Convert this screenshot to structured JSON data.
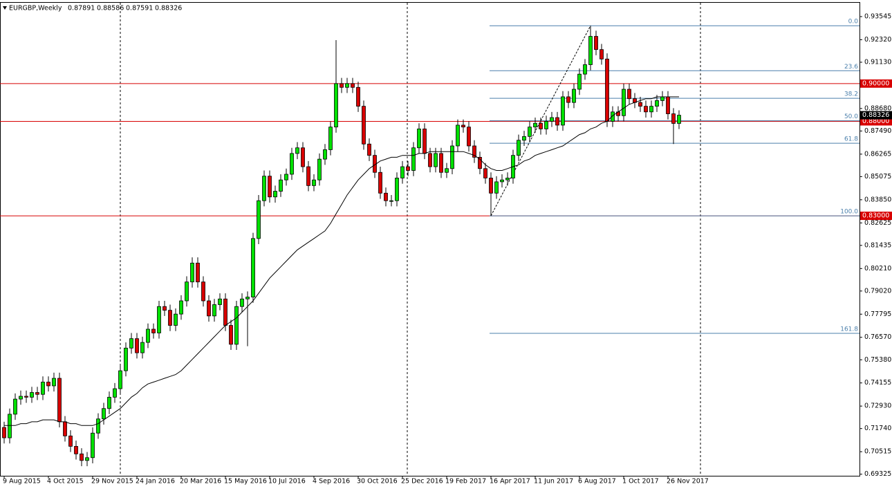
{
  "chart_data": {
    "type": "candlestick",
    "symbol": "EURGBP,Weekly",
    "categories": [
      "9 Aug 2015",
      null,
      null,
      null,
      null,
      null,
      null,
      null,
      "4 Oct 2015",
      null,
      null,
      null,
      null,
      null,
      null,
      null,
      "29 Nov 2015",
      null,
      null,
      null,
      null,
      null,
      null,
      null,
      "24 Jan 2016",
      null,
      null,
      null,
      null,
      null,
      null,
      null,
      "20 Mar 2016",
      null,
      null,
      null,
      null,
      null,
      null,
      null,
      "15 May 2016",
      null,
      null,
      null,
      null,
      null,
      null,
      null,
      "10 Jul 2016",
      null,
      null,
      null,
      null,
      null,
      null,
      null,
      "4 Sep 2016",
      null,
      null,
      null,
      null,
      null,
      null,
      null,
      "30 Oct 2016",
      null,
      null,
      null,
      null,
      null,
      null,
      null,
      "25 Dec 2016",
      null,
      null,
      null,
      null,
      null,
      null,
      null,
      "19 Feb 2017",
      null,
      null,
      null,
      null,
      null,
      null,
      null,
      "16 Apr 2017",
      null,
      null,
      null,
      null,
      null,
      null,
      null,
      "11 Jun 2017",
      null,
      null,
      null,
      null,
      null,
      null,
      null,
      "6 Aug 2017",
      null,
      null,
      null,
      null,
      null,
      null,
      null,
      "1 Oct 2017",
      null,
      null,
      null,
      null,
      null,
      null,
      null,
      "26 Nov 2017",
      null,
      null
    ],
    "open": [
      0.718,
      0.7125,
      0.725,
      0.733,
      0.7345,
      0.734,
      0.7365,
      0.7355,
      0.742,
      0.74,
      0.744,
      0.721,
      0.7135,
      0.708,
      0.704,
      0.7005,
      0.702,
      0.715,
      0.7225,
      0.728,
      0.734,
      0.7385,
      0.748,
      0.76,
      0.765,
      0.7575,
      0.763,
      0.77,
      0.768,
      0.782,
      0.78,
      0.772,
      0.778,
      0.785,
      0.795,
      0.805,
      0.795,
      0.785,
      0.777,
      0.783,
      0.786,
      0.772,
      0.762,
      0.782,
      0.786,
      0.787,
      0.818,
      0.838,
      0.851,
      0.84,
      0.843,
      0.849,
      0.852,
      0.863,
      0.866,
      0.856,
      0.846,
      0.849,
      0.86,
      0.865,
      0.877,
      0.9,
      0.898,
      0.9,
      0.898,
      0.888,
      0.868,
      0.862,
      0.853,
      0.842,
      0.838,
      0.838,
      0.85,
      0.856,
      0.854,
      0.866,
      0.876,
      0.863,
      0.856,
      0.863,
      0.853,
      0.855,
      0.867,
      0.878,
      0.877,
      0.867,
      0.861,
      0.855,
      0.85,
      0.842,
      0.848,
      0.849,
      0.85,
      0.862,
      0.87,
      0.872,
      0.877,
      0.879,
      0.876,
      0.88,
      0.882,
      0.878,
      0.893,
      0.89,
      0.897,
      0.905,
      0.91,
      0.925,
      0.918,
      0.913,
      0.88,
      0.885,
      0.883,
      0.897,
      0.892,
      0.89,
      0.888,
      0.885,
      0.888,
      0.891,
      0.893,
      0.884,
      0.87891
    ],
    "high": [
      0.721,
      0.728,
      0.736,
      0.7375,
      0.7375,
      0.7395,
      0.7395,
      0.745,
      0.745,
      0.747,
      0.747,
      0.724,
      0.7165,
      0.711,
      0.707,
      0.705,
      0.718,
      0.7255,
      0.731,
      0.737,
      0.7415,
      0.751,
      0.763,
      0.768,
      0.768,
      0.766,
      0.773,
      0.773,
      0.785,
      0.785,
      0.783,
      0.781,
      0.788,
      0.798,
      0.808,
      0.808,
      0.798,
      0.788,
      0.786,
      0.789,
      0.789,
      0.775,
      0.785,
      0.789,
      0.79,
      0.821,
      0.841,
      0.854,
      0.854,
      0.846,
      0.852,
      0.855,
      0.866,
      0.869,
      0.869,
      0.859,
      0.852,
      0.863,
      0.868,
      0.88,
      0.923,
      0.903,
      0.903,
      0.903,
      0.901,
      0.891,
      0.871,
      0.865,
      0.856,
      0.845,
      0.841,
      0.853,
      0.859,
      0.859,
      0.869,
      0.879,
      0.879,
      0.866,
      0.866,
      0.866,
      0.858,
      0.87,
      0.881,
      0.881,
      0.88,
      0.87,
      0.864,
      0.858,
      0.853,
      0.851,
      0.852,
      0.853,
      0.865,
      0.873,
      0.875,
      0.88,
      0.882,
      0.882,
      0.883,
      0.885,
      0.885,
      0.896,
      0.896,
      0.9,
      0.908,
      0.913,
      0.9306,
      0.928,
      0.921,
      0.916,
      0.888,
      0.888,
      0.9,
      0.9,
      0.895,
      0.893,
      0.891,
      0.891,
      0.894,
      0.896,
      0.896,
      0.887,
      0.88586
    ],
    "low": [
      0.7095,
      0.7095,
      0.722,
      0.73,
      0.731,
      0.731,
      0.7325,
      0.7325,
      0.737,
      0.737,
      0.718,
      0.7105,
      0.705,
      0.701,
      0.6975,
      0.6975,
      0.699,
      0.712,
      0.7195,
      0.725,
      0.731,
      0.7355,
      0.745,
      0.757,
      0.7545,
      0.7545,
      0.76,
      0.765,
      0.765,
      0.777,
      0.769,
      0.769,
      0.775,
      0.782,
      0.792,
      0.792,
      0.782,
      0.774,
      0.774,
      0.78,
      0.769,
      0.759,
      0.759,
      0.779,
      0.761,
      0.784,
      0.815,
      0.835,
      0.837,
      0.837,
      0.84,
      0.846,
      0.849,
      0.86,
      0.853,
      0.843,
      0.843,
      0.846,
      0.857,
      0.862,
      0.874,
      0.895,
      0.895,
      0.895,
      0.885,
      0.865,
      0.859,
      0.85,
      0.839,
      0.835,
      0.835,
      0.835,
      0.847,
      0.851,
      0.851,
      0.863,
      0.86,
      0.853,
      0.853,
      0.85,
      0.85,
      0.852,
      0.864,
      0.874,
      0.864,
      0.858,
      0.852,
      0.847,
      0.83,
      0.839,
      0.845,
      0.846,
      0.847,
      0.859,
      0.867,
      0.869,
      0.874,
      0.873,
      0.873,
      0.877,
      0.875,
      0.875,
      0.887,
      0.887,
      0.894,
      0.902,
      0.907,
      0.915,
      0.91,
      0.877,
      0.877,
      0.88,
      0.88,
      0.889,
      0.887,
      0.885,
      0.882,
      0.882,
      0.885,
      0.888,
      0.881,
      0.868,
      0.87591
    ],
    "close": [
      0.7125,
      0.725,
      0.733,
      0.7345,
      0.734,
      0.7365,
      0.7355,
      0.742,
      0.74,
      0.744,
      0.721,
      0.7135,
      0.708,
      0.704,
      0.7005,
      0.702,
      0.715,
      0.7225,
      0.728,
      0.734,
      0.7385,
      0.748,
      0.76,
      0.765,
      0.7575,
      0.763,
      0.77,
      0.768,
      0.782,
      0.78,
      0.772,
      0.778,
      0.785,
      0.795,
      0.805,
      0.795,
      0.785,
      0.777,
      0.783,
      0.786,
      0.772,
      0.762,
      0.782,
      0.786,
      0.787,
      0.818,
      0.838,
      0.851,
      0.84,
      0.843,
      0.849,
      0.852,
      0.863,
      0.866,
      0.856,
      0.846,
      0.849,
      0.86,
      0.865,
      0.877,
      0.9,
      0.898,
      0.9,
      0.898,
      0.888,
      0.868,
      0.862,
      0.853,
      0.842,
      0.838,
      0.838,
      0.85,
      0.856,
      0.854,
      0.866,
      0.876,
      0.863,
      0.856,
      0.863,
      0.853,
      0.855,
      0.867,
      0.878,
      0.877,
      0.867,
      0.861,
      0.855,
      0.85,
      0.842,
      0.848,
      0.849,
      0.85,
      0.862,
      0.87,
      0.872,
      0.877,
      0.879,
      0.876,
      0.88,
      0.882,
      0.878,
      0.893,
      0.89,
      0.897,
      0.905,
      0.91,
      0.925,
      0.918,
      0.913,
      0.88,
      0.885,
      0.883,
      0.897,
      0.892,
      0.89,
      0.888,
      0.885,
      0.888,
      0.891,
      0.893,
      0.884,
      0.8789,
      0.88326
    ],
    "up_color": "#00e000",
    "down_color": "#d80000",
    "ylim": [
      0.6924,
      0.9424
    ],
    "yticks": [
      {
        "value": 0.93545,
        "label": "0.93545"
      },
      {
        "value": 0.9232,
        "label": "0.92320"
      },
      {
        "value": 0.9113,
        "label": "0.91130"
      },
      {
        "value": 0.8868,
        "label": "0.88680"
      },
      {
        "value": 0.8749,
        "label": "0.87490"
      },
      {
        "value": 0.86265,
        "label": "0.86265"
      },
      {
        "value": 0.85075,
        "label": "0.85075"
      },
      {
        "value": 0.8385,
        "label": "0.83850"
      },
      {
        "value": 0.82625,
        "label": "0.82625"
      },
      {
        "value": 0.81435,
        "label": "0.81435"
      },
      {
        "value": 0.8021,
        "label": "0.80210"
      },
      {
        "value": 0.7902,
        "label": "0.79020"
      },
      {
        "value": 0.77795,
        "label": "0.77795"
      },
      {
        "value": 0.7657,
        "label": "0.76570"
      },
      {
        "value": 0.7538,
        "label": "0.75380"
      },
      {
        "value": 0.74155,
        "label": "0.74155"
      },
      {
        "value": 0.7293,
        "label": "0.72930"
      },
      {
        "value": 0.7174,
        "label": "0.71740"
      },
      {
        "value": 0.70515,
        "label": "0.70515"
      },
      {
        "value": 0.69325,
        "label": "0.69325"
      }
    ],
    "moving_average": {
      "color": "#000000",
      "values": [
        0.719,
        0.719,
        0.719,
        0.72,
        0.72,
        0.721,
        0.721,
        0.722,
        0.722,
        0.722,
        0.721,
        0.721,
        0.72,
        0.72,
        0.719,
        0.719,
        0.719,
        0.72,
        0.722,
        0.724,
        0.726,
        0.728,
        0.731,
        0.734,
        0.736,
        0.739,
        0.741,
        0.742,
        0.743,
        0.744,
        0.745,
        0.746,
        0.748,
        0.751,
        0.754,
        0.757,
        0.76,
        0.763,
        0.766,
        0.769,
        0.772,
        0.774,
        0.776,
        0.779,
        0.782,
        0.785,
        0.789,
        0.793,
        0.797,
        0.8,
        0.803,
        0.806,
        0.809,
        0.812,
        0.814,
        0.816,
        0.818,
        0.82,
        0.822,
        0.826,
        0.831,
        0.836,
        0.841,
        0.845,
        0.849,
        0.852,
        0.855,
        0.857,
        0.859,
        0.86,
        0.861,
        0.861,
        0.862,
        0.862,
        0.862,
        0.863,
        0.863,
        0.864,
        0.864,
        0.864,
        0.864,
        0.864,
        0.864,
        0.864,
        0.863,
        0.862,
        0.86,
        0.857,
        0.855,
        0.854,
        0.854,
        0.855,
        0.856,
        0.857,
        0.859,
        0.86,
        0.862,
        0.863,
        0.864,
        0.865,
        0.866,
        0.867,
        0.869,
        0.871,
        0.873,
        0.874,
        0.876,
        0.877,
        0.879,
        0.88,
        0.883,
        0.885,
        0.887,
        0.889,
        0.89,
        0.891,
        0.892,
        0.892,
        0.893,
        0.893,
        0.893,
        0.893,
        0.893
      ]
    },
    "fibonacci": {
      "color": "#4a7fab",
      "levels": [
        {
          "label": "0.0",
          "price": 0.9306
        },
        {
          "label": "23.6",
          "price": 0.9068
        },
        {
          "label": "38.2",
          "price": 0.8922
        },
        {
          "label": "50.0",
          "price": 0.8803
        },
        {
          "label": "61.8",
          "price": 0.8684
        },
        {
          "label": "100.0",
          "price": 0.83
        },
        {
          "label": "161.8",
          "price": 0.7678
        }
      ]
    },
    "price_lines": {
      "color": "#d80000",
      "levels": [
        {
          "value": 0.9,
          "label": "0.90000"
        },
        {
          "value": 0.88,
          "label": "0.88000"
        },
        {
          "value": 0.83,
          "label": "0.83000"
        }
      ]
    },
    "last_price": 0.88326
  }
}
